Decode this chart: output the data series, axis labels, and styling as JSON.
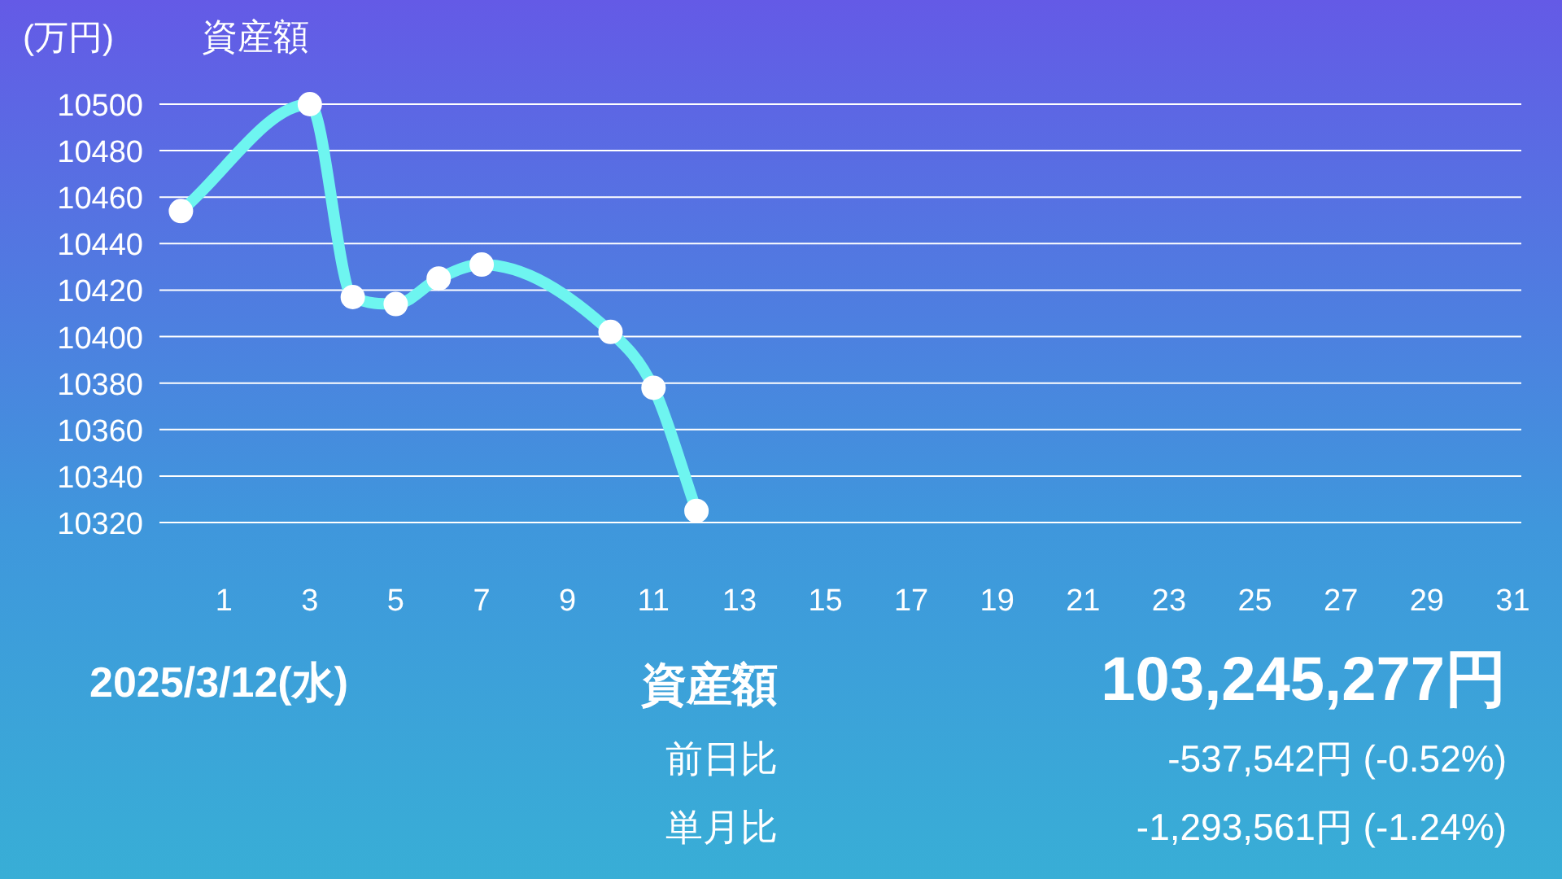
{
  "chart_data": {
    "type": "line",
    "title": "資産額",
    "ylabel": "(万円)",
    "x": [
      0,
      3,
      4,
      5,
      6,
      7,
      10,
      11,
      12
    ],
    "series": [
      {
        "color": "#6ef5f0",
        "values": [
          10454,
          10500,
          10417,
          10414,
          10425,
          10431,
          10402,
          10378,
          10325
        ]
      }
    ],
    "xlim": [
      -0.5,
      31.2
    ],
    "xticks": [
      1,
      3,
      5,
      7,
      9,
      11,
      13,
      15,
      17,
      19,
      21,
      23,
      25,
      27,
      29,
      31
    ],
    "ylim": [
      10320,
      10500
    ],
    "yticks": [
      10320,
      10340,
      10360,
      10380,
      10400,
      10420,
      10440,
      10460,
      10480,
      10500
    ],
    "grid": "y",
    "marker": "circle",
    "line_style": "solid",
    "annotations": [
      "2025/3/12(水)",
      "資産額",
      "103,245,277円",
      "前日比",
      "-537,542円 (-0.52%)",
      "単月比",
      "-1,293,561円 (-1.24%)"
    ]
  }
}
